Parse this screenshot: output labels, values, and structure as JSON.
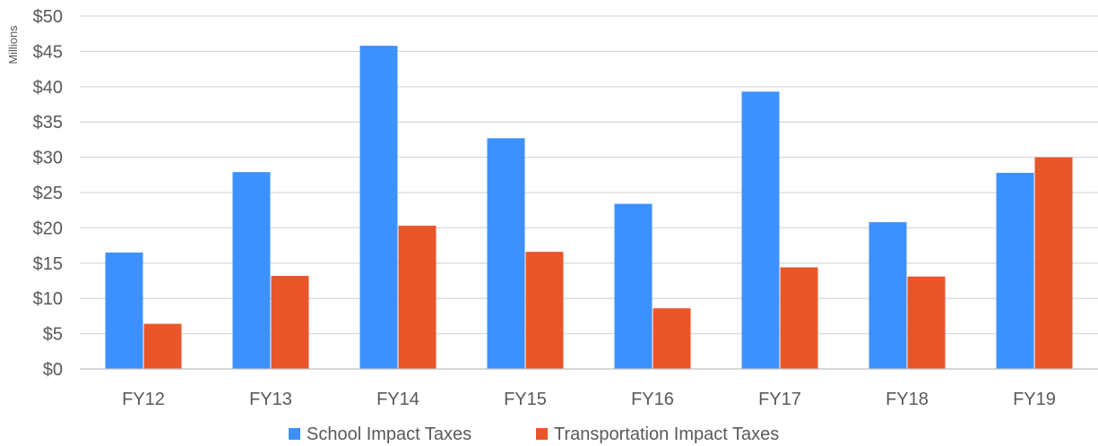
{
  "chart_data": {
    "type": "bar",
    "ylabel": "Millions",
    "categories": [
      "FY12",
      "FY13",
      "FY14",
      "FY15",
      "FY16",
      "FY17",
      "FY18",
      "FY19"
    ],
    "series": [
      {
        "name": "School Impact Taxes",
        "color": "#3d91ff",
        "values": [
          16.5,
          27.9,
          45.8,
          32.7,
          23.4,
          39.3,
          20.8,
          27.8
        ]
      },
      {
        "name": "Transportation Impact Taxes",
        "color": "#e8562a",
        "values": [
          6.4,
          13.2,
          20.3,
          16.6,
          8.6,
          14.4,
          13.1,
          30.0
        ]
      }
    ],
    "ylim": [
      0,
      50
    ],
    "yticks": [
      0,
      5,
      10,
      15,
      20,
      25,
      30,
      35,
      40,
      45,
      50
    ],
    "ytick_labels": [
      "$0",
      "$5",
      "$10",
      "$15",
      "$20",
      "$25",
      "$30",
      "$35",
      "$40",
      "$45",
      "$50"
    ],
    "grid": true,
    "legend_position": "bottom"
  }
}
